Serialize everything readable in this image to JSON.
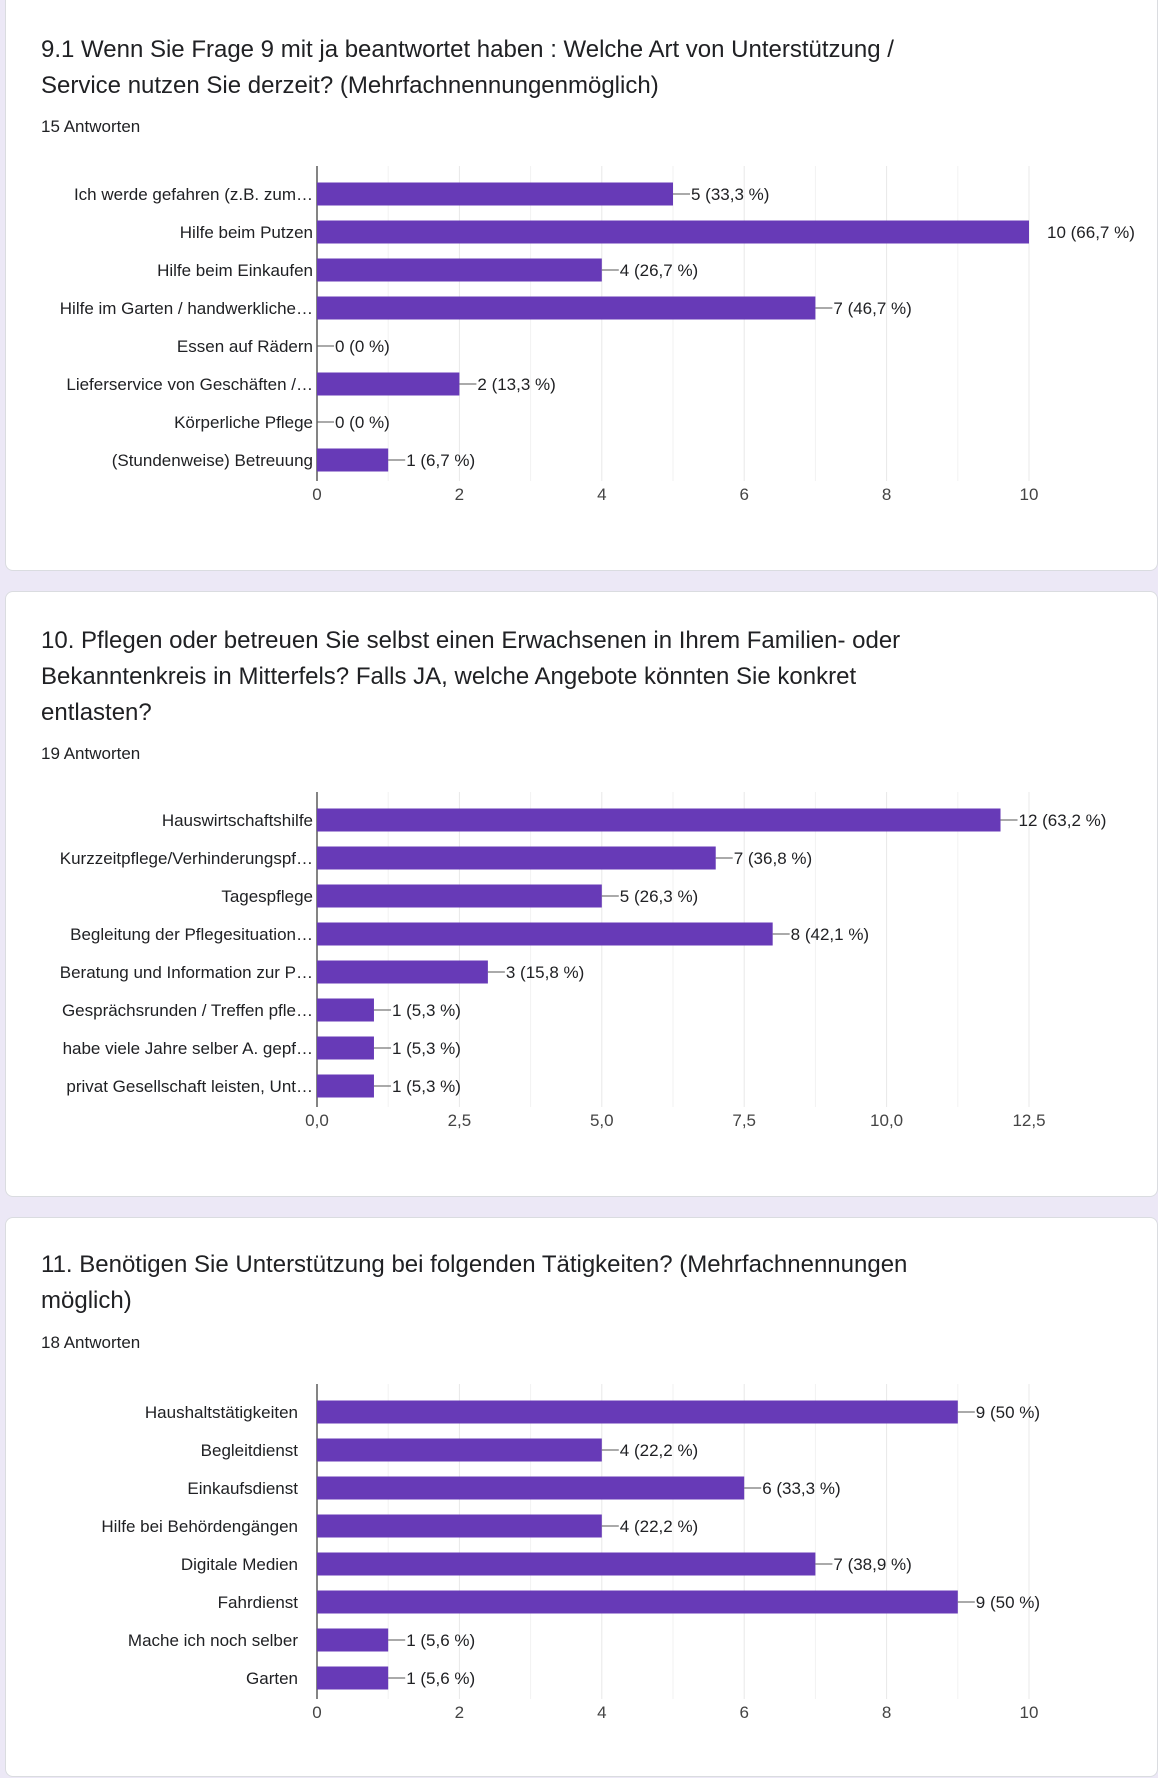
{
  "colors": {
    "bar": "#673ab7",
    "page_background": "#ece8f6",
    "card_background": "#ffffff",
    "grid": "#e8e8e8",
    "axis": "#333333",
    "text": "#202124"
  },
  "questions": [
    {
      "title": "9.1 Wenn Sie Frage 9 mit ja beantwortet haben : Welche Art von Unterstützung / Service nutzen Sie derzeit? (Mehrfachnennungenmöglich)",
      "responses": "15 Antworten"
    },
    {
      "title": "10. Pflegen oder betreuen Sie selbst einen Erwachsenen in Ihrem Familien- oder Bekanntenkreis in Mitterfels? Falls JA, welche Angebote könnten Sie konkret entlasten?",
      "responses": "19 Antworten"
    },
    {
      "title": "11. Benötigen Sie Unterstützung bei folgenden Tätigkeiten? (Mehrfachnennungen möglich)",
      "responses": "18 Antworten"
    }
  ],
  "chart_data": [
    {
      "type": "bar",
      "orientation": "horizontal",
      "categories": [
        "Ich werde gefahren (z.B. zum…",
        "Hilfe beim Putzen",
        "Hilfe beim Einkaufen",
        "Hilfe im Garten / handwerkliche…",
        "Essen auf Rädern",
        "Lieferservice von Geschäften /…",
        "Körperliche Pflege",
        "(Stundenweise) Betreuung"
      ],
      "values": [
        5,
        10,
        4,
        7,
        0,
        2,
        0,
        1
      ],
      "data_labels": [
        "5 (33,3 %)",
        "10 (66,7 %)",
        "4 (26,7 %)",
        "7 (46,7 %)",
        "0 (0 %)",
        "2 (13,3 %)",
        "0 (0 %)",
        "1 (6,7 %)"
      ],
      "xlim": [
        0,
        10
      ],
      "ticks": [
        0,
        2,
        4,
        6,
        8,
        10
      ],
      "tick_labels": [
        "0",
        "2",
        "4",
        "6",
        "8",
        "10"
      ],
      "grid": true
    },
    {
      "type": "bar",
      "orientation": "horizontal",
      "categories": [
        "Hauswirtschaftshilfe",
        "Kurzzeitpflege/Verhinderungspf…",
        "Tagespflege",
        "Begleitung der Pflegesituation…",
        "Beratung und Information zur P…",
        "Gesprächsrunden / Treffen pfle…",
        "habe viele Jahre selber A. gepf…",
        "privat Gesellschaft leisten, Unt…"
      ],
      "values": [
        12,
        7,
        5,
        8,
        3,
        1,
        1,
        1
      ],
      "data_labels": [
        "12 (63,2 %)",
        "7 (36,8 %)",
        "5 (26,3 %)",
        "8 (42,1 %)",
        "3 (15,8 %)",
        "1 (5,3 %)",
        "1 (5,3 %)",
        "1 (5,3 %)"
      ],
      "xlim": [
        0,
        12.5
      ],
      "ticks": [
        0,
        2.5,
        5,
        7.5,
        10,
        12.5
      ],
      "tick_labels": [
        "0,0",
        "2,5",
        "5,0",
        "7,5",
        "10,0",
        "12,5"
      ],
      "grid": true
    },
    {
      "type": "bar",
      "orientation": "horizontal",
      "categories": [
        "Haushaltstätigkeiten",
        "Begleitdienst",
        "Einkaufsdienst",
        "Hilfe bei Behördengängen",
        "Digitale Medien",
        "Fahrdienst",
        "Mache ich noch selber",
        "Garten"
      ],
      "values": [
        9,
        4,
        6,
        4,
        7,
        9,
        1,
        1
      ],
      "data_labels": [
        "9 (50 %)",
        "4 (22,2 %)",
        "6 (33,3 %)",
        "4 (22,2 %)",
        "7 (38,9 %)",
        "9 (50 %)",
        "1 (5,6 %)",
        "1 (5,6 %)"
      ],
      "xlim": [
        0,
        10
      ],
      "ticks": [
        0,
        2,
        4,
        6,
        8,
        10
      ],
      "tick_labels": [
        "0",
        "2",
        "4",
        "6",
        "8",
        "10"
      ],
      "grid": true
    }
  ]
}
